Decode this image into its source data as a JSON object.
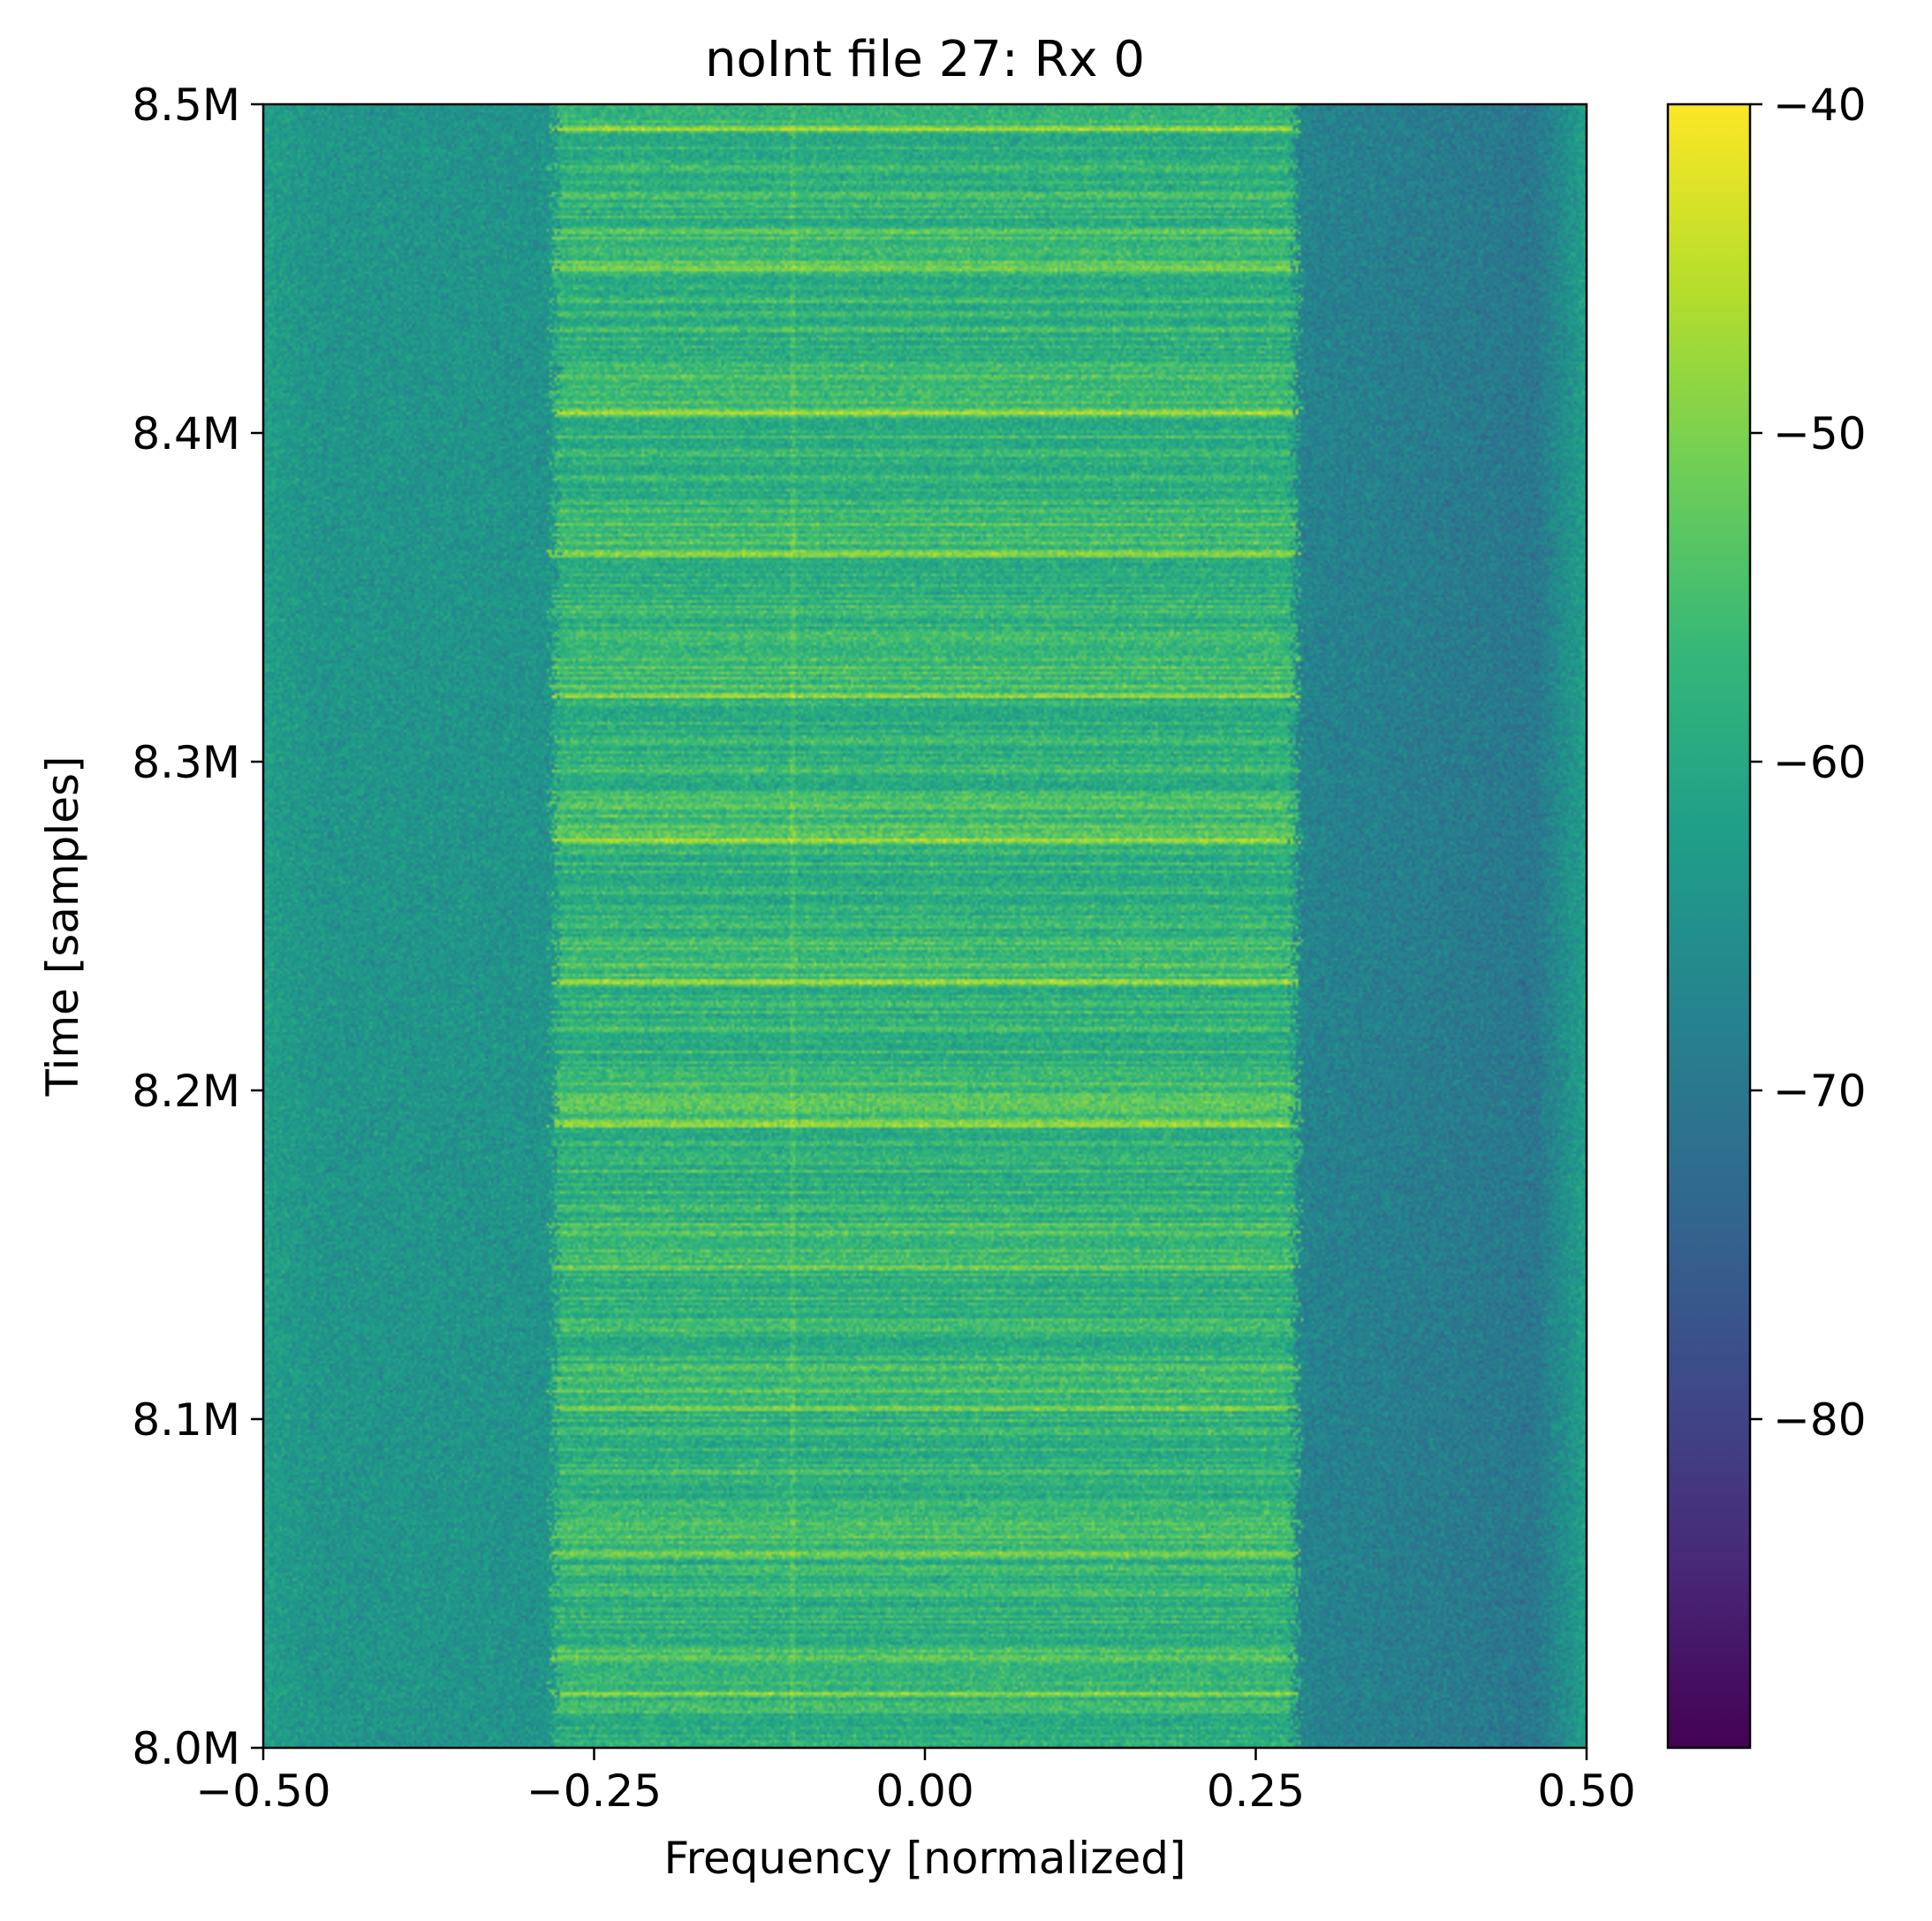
{
  "chart_data": {
    "type": "heatmap",
    "title": "noInt file 27: Rx 0",
    "xlabel": "Frequency [normalized]",
    "ylabel": "Time [samples]",
    "xlim": [
      -0.5,
      0.5
    ],
    "ylim": [
      8000000,
      8500000
    ],
    "x_ticks": [
      {
        "value": -0.5,
        "label": "−0.50"
      },
      {
        "value": -0.25,
        "label": "−0.25"
      },
      {
        "value": 0.0,
        "label": "0.00"
      },
      {
        "value": 0.25,
        "label": "0.25"
      },
      {
        "value": 0.5,
        "label": "0.50"
      }
    ],
    "y_ticks": [
      {
        "value": 8000000,
        "label": "8.0M"
      },
      {
        "value": 8100000,
        "label": "8.1M"
      },
      {
        "value": 8200000,
        "label": "8.2M"
      },
      {
        "value": 8300000,
        "label": "8.3M"
      },
      {
        "value": 8400000,
        "label": "8.4M"
      },
      {
        "value": 8500000,
        "label": "8.5M"
      }
    ],
    "colorbar": {
      "colormap": "viridis",
      "range": [
        -90,
        -40
      ],
      "ticks": [
        {
          "value": -40,
          "label": "−40"
        },
        {
          "value": -50,
          "label": "−50"
        },
        {
          "value": -60,
          "label": "−60"
        },
        {
          "value": -70,
          "label": "−70"
        },
        {
          "value": -80,
          "label": "−80"
        }
      ]
    },
    "signal_band": {
      "freq_range": [
        -0.28,
        0.28
      ],
      "level_db": -58
    },
    "noise_floor_db": {
      "left_edge": -62,
      "left": -64,
      "right": -70,
      "right_edge": -62
    },
    "burst_lines_time": [
      8016000,
      8059000,
      8103000,
      8146000,
      8190000,
      8233000,
      8276000,
      8320000,
      8363000,
      8406000,
      8450000,
      8493000
    ],
    "center_spur_freq": -0.1
  },
  "colors": {
    "viridis": [
      "#440154",
      "#482878",
      "#3e4a89",
      "#31688e",
      "#26828e",
      "#1f9e89",
      "#35b779",
      "#6ece58",
      "#b5de2b",
      "#fde725"
    ]
  }
}
